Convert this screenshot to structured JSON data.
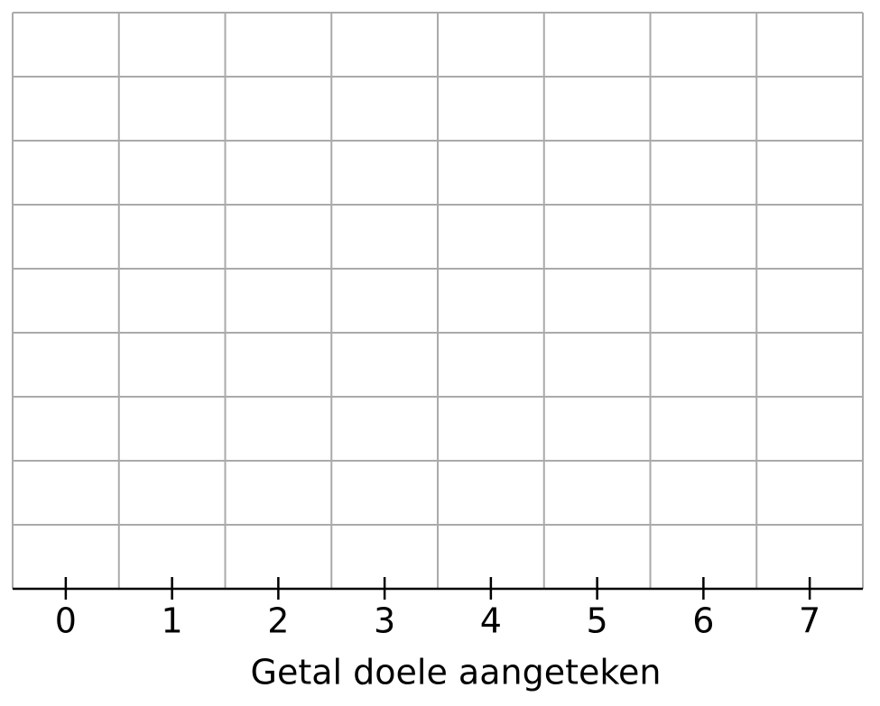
{
  "chart_data": {
    "type": "dot",
    "x_label": "Getal doele aangeteken",
    "xlim": [
      -0.5,
      7.5
    ],
    "xticks": [
      0,
      1,
      2,
      3,
      4,
      5,
      6,
      7
    ],
    "grid": true
  }
}
